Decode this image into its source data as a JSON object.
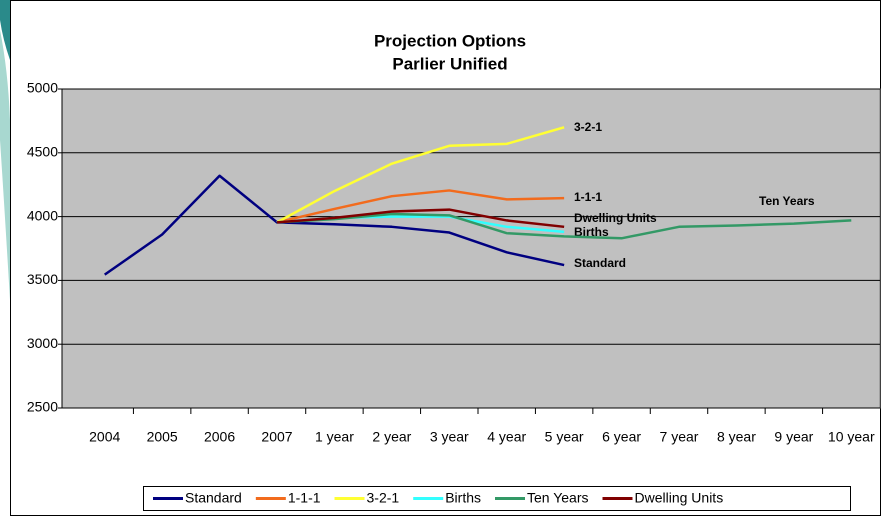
{
  "chart_data": {
    "type": "line",
    "title": "Projection Options",
    "subtitle": "Parlier Unified",
    "categories": [
      "2004",
      "2005",
      "2006",
      "2007",
      "1 year",
      "2 year",
      "3 year",
      "4 year",
      "5 year",
      "6 year",
      "7 year",
      "8 year",
      "9 year",
      "10 year"
    ],
    "series": [
      {
        "name": "Standard",
        "color": "#000080",
        "values": [
          3545,
          3860,
          4320,
          3955,
          3940,
          3920,
          3875,
          3720,
          3620,
          null,
          null,
          null,
          null,
          null
        ]
      },
      {
        "name": "1-1-1",
        "color": "#f26b1d",
        "values": [
          null,
          null,
          null,
          3955,
          4060,
          4160,
          4205,
          4135,
          4145,
          null,
          null,
          null,
          null,
          null
        ]
      },
      {
        "name": "3-2-1",
        "color": "#ffff33",
        "values": [
          null,
          null,
          null,
          3955,
          4200,
          4415,
          4555,
          4570,
          4700,
          null,
          null,
          null,
          null,
          null
        ]
      },
      {
        "name": "Births",
        "color": "#33ffff",
        "values": [
          null,
          null,
          null,
          3955,
          3990,
          4000,
          4000,
          3920,
          3880,
          null,
          null,
          null,
          null,
          null
        ]
      },
      {
        "name": "Ten Years",
        "color": "#339966",
        "values": [
          null,
          null,
          null,
          3955,
          3980,
          4020,
          4010,
          3870,
          3845,
          3830,
          3920,
          3930,
          3945,
          3970
        ]
      },
      {
        "name": "Dwelling Units",
        "color": "#800000",
        "values": [
          null,
          null,
          null,
          3955,
          3990,
          4040,
          4055,
          3970,
          3920,
          null,
          null,
          null,
          null,
          null
        ]
      }
    ],
    "annotations": [
      "3-2-1",
      "1-1-1",
      "Dwelling Units",
      "Births",
      "Standard",
      "Ten Years"
    ],
    "ylim": [
      2500,
      5000
    ],
    "yticks": [
      2500,
      3000,
      3500,
      4000,
      4500,
      5000
    ],
    "grid": true,
    "legend": "bottom"
  }
}
